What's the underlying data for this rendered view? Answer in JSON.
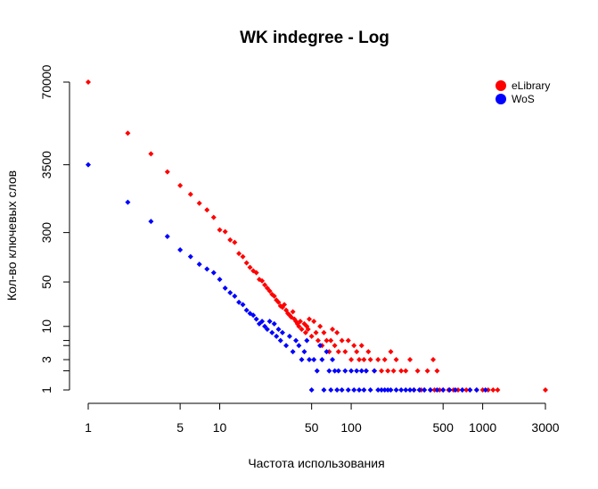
{
  "chart_data": {
    "type": "scatter",
    "title": "WK indegree - Log",
    "xlabel": "Частота использования",
    "ylabel": "Кол-во ключевых слов",
    "x_scale": "log",
    "y_scale": "log",
    "xlim": [
      0.75,
      3300
    ],
    "ylim": [
      0.8,
      90000
    ],
    "x_ticks": [
      1,
      5,
      10,
      50,
      100,
      500,
      1000,
      3000
    ],
    "x_tick_labels": [
      "1",
      "5",
      "10",
      "50",
      "100",
      "500",
      "1000",
      "3000"
    ],
    "y_ticks": [
      1,
      3,
      10,
      50,
      300,
      3500,
      70000
    ],
    "y_tick_labels": [
      "1",
      "3",
      "10",
      "50",
      "300",
      "3500",
      "70000"
    ],
    "y_minor_ticks": [
      2,
      5,
      6
    ],
    "grid": false,
    "legend_position": "top-right",
    "series": [
      {
        "name": "eLibrary",
        "color": "#ff0000",
        "points": [
          [
            1,
            70000
          ],
          [
            2,
            11000
          ],
          [
            3,
            5200
          ],
          [
            4,
            2700
          ],
          [
            5,
            1650
          ],
          [
            6,
            1200
          ],
          [
            7,
            870
          ],
          [
            8,
            680
          ],
          [
            9,
            520
          ],
          [
            10,
            330
          ],
          [
            11,
            310
          ],
          [
            12,
            230
          ],
          [
            13,
            210
          ],
          [
            14,
            140
          ],
          [
            15,
            125
          ],
          [
            16,
            100
          ],
          [
            17,
            85
          ],
          [
            18,
            75
          ],
          [
            19,
            70
          ],
          [
            20,
            55
          ],
          [
            21,
            52
          ],
          [
            22,
            45
          ],
          [
            23,
            40
          ],
          [
            24,
            36
          ],
          [
            25,
            32
          ],
          [
            26,
            30
          ],
          [
            27,
            26
          ],
          [
            28,
            24
          ],
          [
            29,
            21
          ],
          [
            30,
            20
          ],
          [
            31,
            22
          ],
          [
            32,
            18
          ],
          [
            33,
            16
          ],
          [
            34,
            15
          ],
          [
            35,
            14
          ],
          [
            36,
            17
          ],
          [
            37,
            13
          ],
          [
            38,
            12
          ],
          [
            39,
            11
          ],
          [
            40,
            10
          ],
          [
            41,
            12
          ],
          [
            42,
            9
          ],
          [
            44,
            11
          ],
          [
            45,
            8
          ],
          [
            46,
            10
          ],
          [
            47,
            9
          ],
          [
            48,
            13
          ],
          [
            50,
            7
          ],
          [
            52,
            12
          ],
          [
            54,
            8
          ],
          [
            56,
            6
          ],
          [
            58,
            10
          ],
          [
            60,
            5
          ],
          [
            62,
            8
          ],
          [
            65,
            6
          ],
          [
            68,
            4
          ],
          [
            70,
            6
          ],
          [
            72,
            9
          ],
          [
            75,
            5
          ],
          [
            78,
            8
          ],
          [
            80,
            4
          ],
          [
            85,
            6
          ],
          [
            90,
            4
          ],
          [
            95,
            6
          ],
          [
            100,
            3
          ],
          [
            105,
            5
          ],
          [
            110,
            4
          ],
          [
            115,
            3
          ],
          [
            120,
            5
          ],
          [
            125,
            3
          ],
          [
            130,
            2
          ],
          [
            135,
            4
          ],
          [
            140,
            3
          ],
          [
            150,
            2
          ],
          [
            160,
            3
          ],
          [
            170,
            2
          ],
          [
            180,
            3
          ],
          [
            190,
            2
          ],
          [
            200,
            4
          ],
          [
            210,
            2
          ],
          [
            220,
            3
          ],
          [
            240,
            2
          ],
          [
            260,
            2
          ],
          [
            280,
            3
          ],
          [
            300,
            1
          ],
          [
            320,
            2
          ],
          [
            340,
            1
          ],
          [
            360,
            1
          ],
          [
            380,
            2
          ],
          [
            400,
            1
          ],
          [
            420,
            3
          ],
          [
            430,
            1
          ],
          [
            450,
            2
          ],
          [
            470,
            1
          ],
          [
            500,
            1
          ],
          [
            550,
            1
          ],
          [
            600,
            1
          ],
          [
            650,
            1
          ],
          [
            700,
            1
          ],
          [
            750,
            1
          ],
          [
            800,
            1
          ],
          [
            900,
            1
          ],
          [
            1000,
            1
          ],
          [
            1100,
            1
          ],
          [
            1200,
            1
          ],
          [
            1300,
            1
          ],
          [
            3000,
            1
          ]
        ]
      },
      {
        "name": "WoS",
        "color": "#0000ff",
        "points": [
          [
            1,
            3500
          ],
          [
            2,
            900
          ],
          [
            3,
            450
          ],
          [
            4,
            260
          ],
          [
            5,
            160
          ],
          [
            6,
            125
          ],
          [
            7,
            95
          ],
          [
            8,
            80
          ],
          [
            9,
            70
          ],
          [
            10,
            55
          ],
          [
            11,
            40
          ],
          [
            12,
            34
          ],
          [
            13,
            30
          ],
          [
            14,
            24
          ],
          [
            15,
            22
          ],
          [
            16,
            18
          ],
          [
            17,
            16
          ],
          [
            18,
            15
          ],
          [
            19,
            13
          ],
          [
            20,
            11
          ],
          [
            21,
            12
          ],
          [
            22,
            10
          ],
          [
            23,
            9
          ],
          [
            24,
            12
          ],
          [
            25,
            8
          ],
          [
            26,
            11
          ],
          [
            27,
            7
          ],
          [
            28,
            9
          ],
          [
            29,
            6
          ],
          [
            30,
            8
          ],
          [
            32,
            5
          ],
          [
            34,
            7
          ],
          [
            36,
            4
          ],
          [
            38,
            6
          ],
          [
            40,
            5
          ],
          [
            42,
            3
          ],
          [
            44,
            4
          ],
          [
            46,
            6
          ],
          [
            48,
            3
          ],
          [
            50,
            1
          ],
          [
            52,
            3
          ],
          [
            55,
            2
          ],
          [
            58,
            5
          ],
          [
            60,
            3
          ],
          [
            62,
            1
          ],
          [
            65,
            4
          ],
          [
            68,
            2
          ],
          [
            70,
            1
          ],
          [
            72,
            3
          ],
          [
            75,
            2
          ],
          [
            78,
            1
          ],
          [
            80,
            2
          ],
          [
            85,
            1
          ],
          [
            90,
            2
          ],
          [
            95,
            1
          ],
          [
            100,
            2
          ],
          [
            105,
            1
          ],
          [
            110,
            2
          ],
          [
            115,
            1
          ],
          [
            120,
            2
          ],
          [
            125,
            1
          ],
          [
            130,
            2
          ],
          [
            140,
            1
          ],
          [
            150,
            2
          ],
          [
            160,
            1
          ],
          [
            170,
            1
          ],
          [
            180,
            1
          ],
          [
            190,
            1
          ],
          [
            200,
            1
          ],
          [
            220,
            1
          ],
          [
            240,
            1
          ],
          [
            260,
            1
          ],
          [
            280,
            1
          ],
          [
            300,
            1
          ],
          [
            330,
            1
          ],
          [
            360,
            1
          ],
          [
            400,
            1
          ],
          [
            450,
            1
          ],
          [
            500,
            1
          ],
          [
            560,
            1
          ],
          [
            620,
            1
          ],
          [
            700,
            1
          ],
          [
            800,
            1
          ],
          [
            900,
            1
          ],
          [
            1050,
            1
          ]
        ]
      }
    ]
  }
}
